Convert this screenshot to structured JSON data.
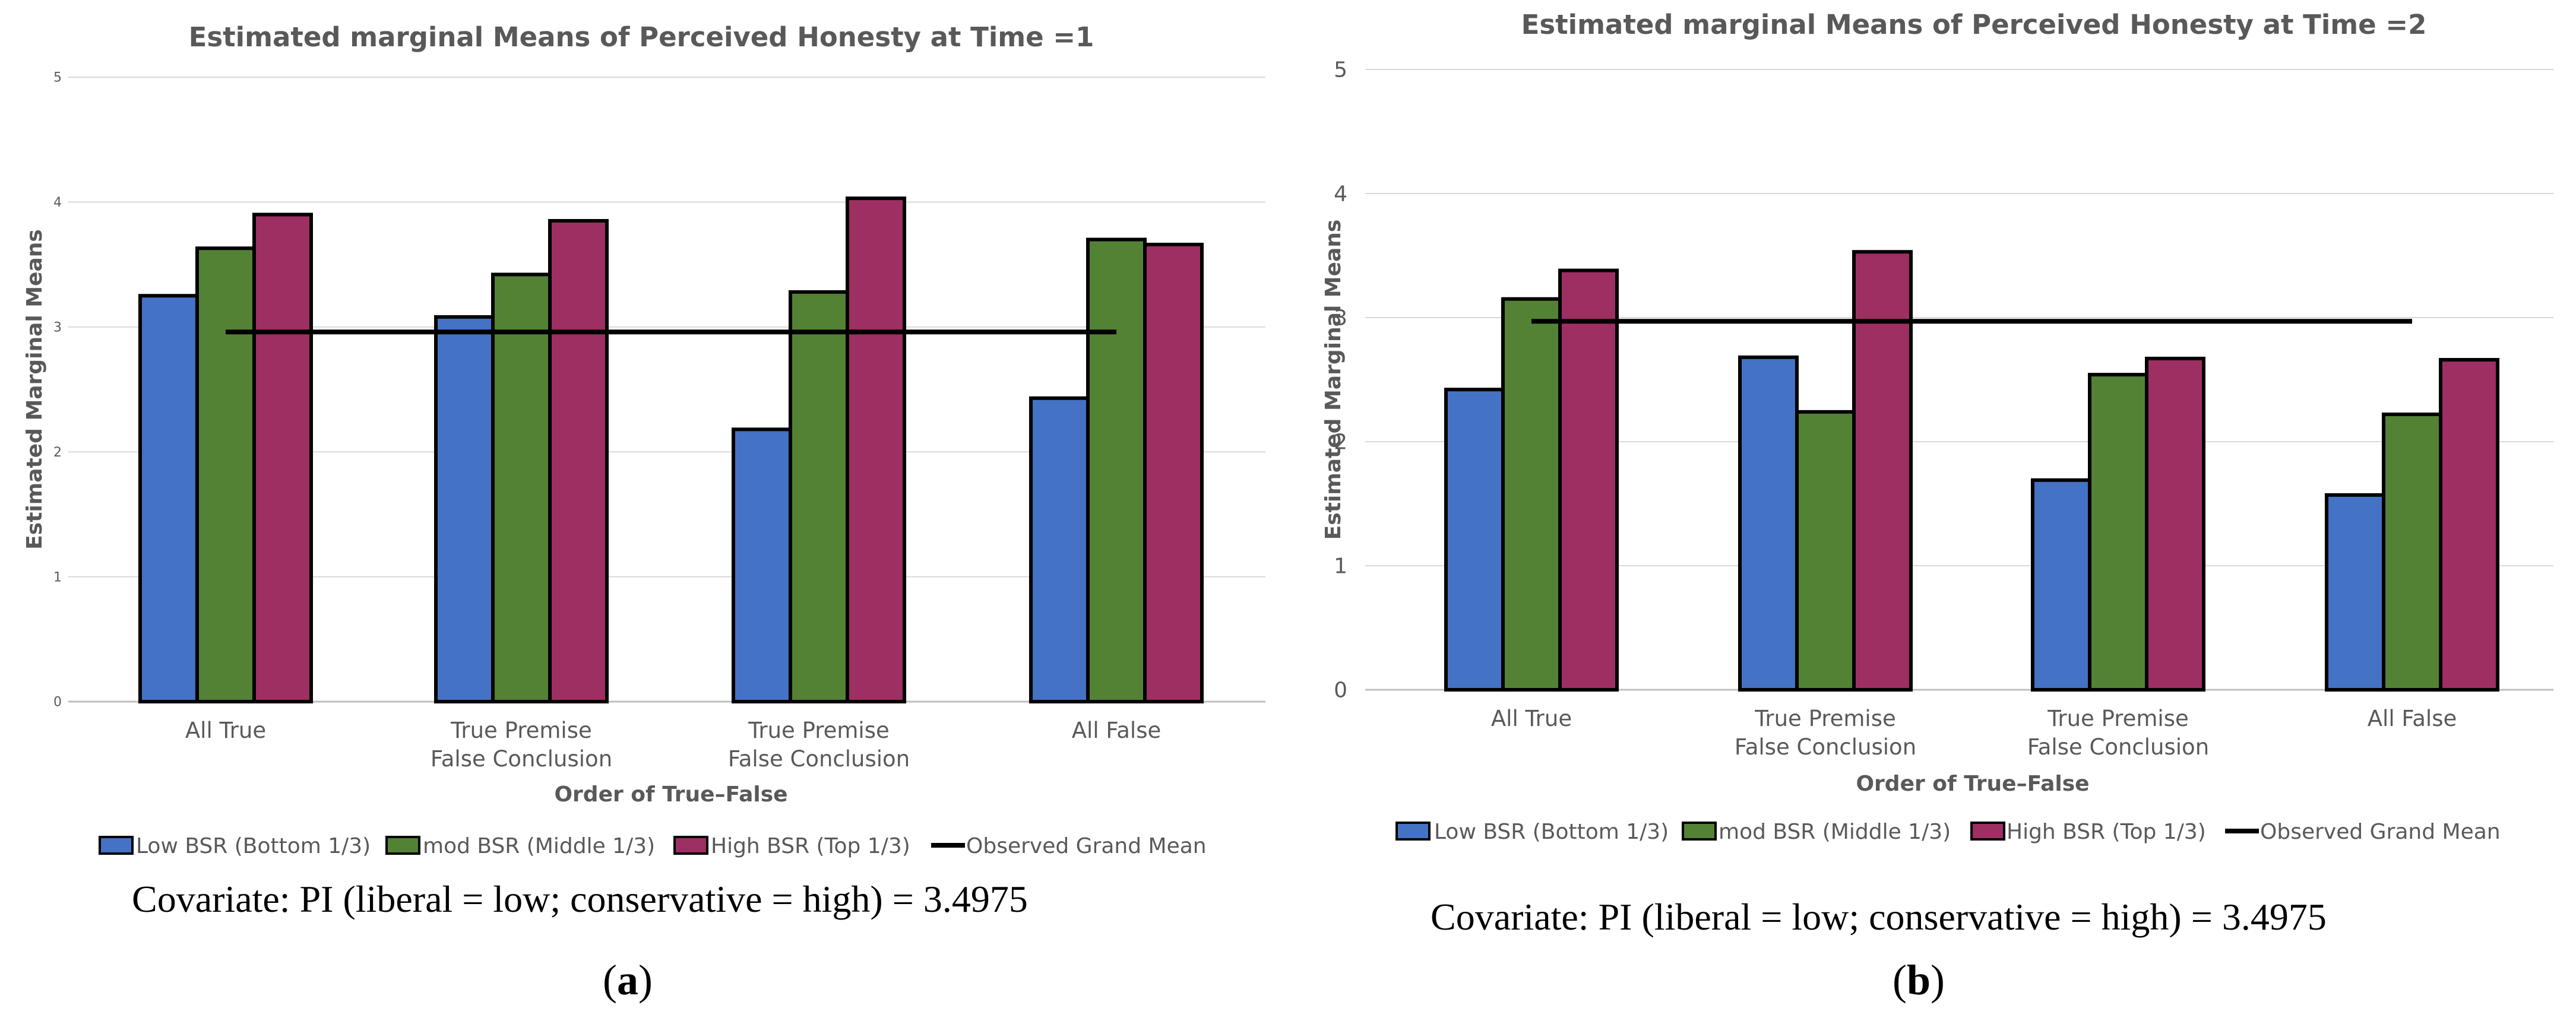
{
  "chart_data": [
    {
      "type": "bar",
      "title": "Estimated marginal Means of Perceived Honesty at Time =1",
      "xlabel": "Order of True–False",
      "ylabel": "Estimated Marginal Means",
      "ylim": [
        0,
        5
      ],
      "yticks": [
        "0",
        "1",
        "2",
        "3",
        "4",
        "5"
      ],
      "grid": true,
      "legend_position": "bottom",
      "categories": [
        [
          "All True"
        ],
        [
          "True Premise",
          "False Conclusion"
        ],
        [
          "True Premise",
          "False Conclusion"
        ],
        [
          "All False"
        ]
      ],
      "series": [
        {
          "name": "Low BSR (Bottom 1/3)",
          "color": "#4472C4",
          "values": [
            3.25,
            3.08,
            2.18,
            2.43
          ]
        },
        {
          "name": "mod BSR (Middle 1/3)",
          "color": "#548235",
          "values": [
            3.63,
            3.42,
            3.28,
            3.7
          ]
        },
        {
          "name": "High BSR (Top 1/3)",
          "color": "#9E2F62",
          "values": [
            3.9,
            3.85,
            4.03,
            3.66
          ]
        }
      ],
      "reference_line": {
        "name": "Observed Grand Mean",
        "value": 2.96,
        "color": "#000000"
      },
      "covariate_note": "Covariate: PI (liberal = low; conservative = high) = 3.4975",
      "panel_label": "a"
    },
    {
      "type": "bar",
      "title": "Estimated marginal Means of Perceived Honesty at Time =2",
      "xlabel": "Order of True–False",
      "ylabel": "Estimated Marginal Means",
      "ylim": [
        0,
        5
      ],
      "yticks": [
        "0",
        "1",
        "2",
        "3",
        "4",
        "5"
      ],
      "grid": true,
      "legend_position": "bottom",
      "categories": [
        [
          "All True"
        ],
        [
          "True Premise",
          "False Conclusion"
        ],
        [
          "True Premise",
          "False Conclusion"
        ],
        [
          "All False"
        ]
      ],
      "series": [
        {
          "name": "Low BSR (Bottom 1/3)",
          "color": "#4472C4",
          "values": [
            2.42,
            2.68,
            1.69,
            1.57
          ]
        },
        {
          "name": "mod BSR (Middle 1/3)",
          "color": "#548235",
          "values": [
            3.15,
            2.24,
            2.54,
            2.22
          ]
        },
        {
          "name": "High BSR (Top 1/3)",
          "color": "#9E2F62",
          "values": [
            3.38,
            3.53,
            2.67,
            2.66
          ]
        }
      ],
      "reference_line": {
        "name": "Observed Grand Mean",
        "value": 2.97,
        "color": "#000000"
      },
      "covariate_note": "Covariate: PI (liberal = low; conservative = high) = 3.4975",
      "panel_label": "b"
    }
  ]
}
